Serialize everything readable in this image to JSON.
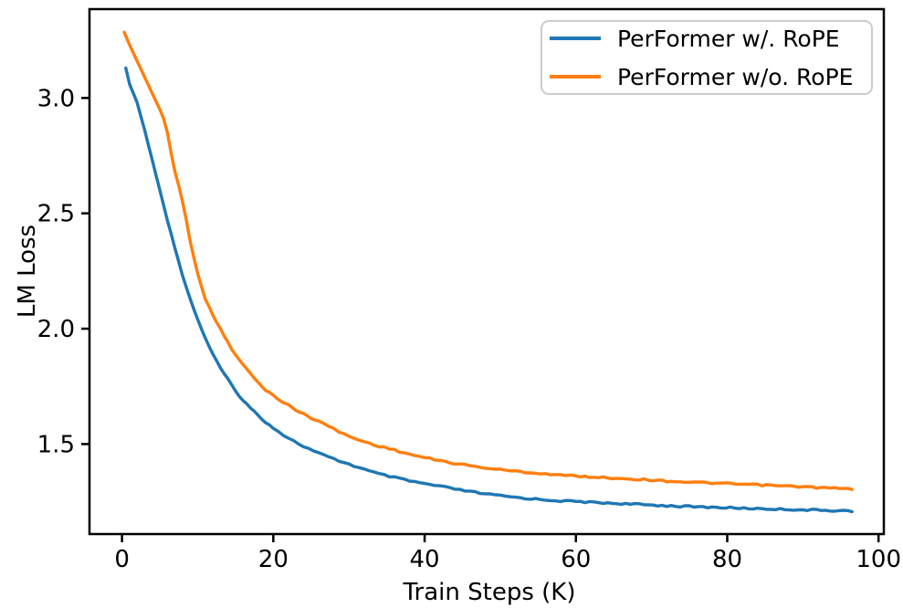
{
  "chart_data": {
    "type": "line",
    "title": "",
    "xlabel": "Train Steps (K)",
    "ylabel": "LM Loss",
    "xlim": [
      -4.3,
      100.7
    ],
    "ylim": [
      1.11,
      3.385
    ],
    "grid": false,
    "background_color": "#ffffff",
    "axis_color": "#000000",
    "x_ticks": {
      "values": [
        0,
        20,
        40,
        60,
        80,
        100
      ],
      "labels": [
        "0",
        "20",
        "40",
        "60",
        "80",
        "100"
      ]
    },
    "y_ticks": {
      "values": [
        1.5,
        2.0,
        2.5,
        3.0
      ],
      "labels": [
        "1.5",
        "2.0",
        "2.5",
        "3.0"
      ]
    },
    "legend": {
      "position": "upper right",
      "border_color": "#cccccc",
      "entries": [
        "PerFormer w/. RoPE",
        "PerFormer w/o. RoPE"
      ]
    },
    "series": [
      {
        "name": "PerFormer w/. RoPE",
        "color": "#1f77b4",
        "x": [
          0.5,
          1,
          2,
          3,
          4,
          5,
          6,
          7,
          8,
          9,
          10,
          11,
          12,
          13,
          14,
          15,
          16,
          17,
          18,
          19,
          20,
          22,
          24,
          26,
          28,
          30,
          32,
          34,
          36,
          38,
          40,
          42,
          44,
          46,
          48,
          50,
          52,
          54,
          56,
          58,
          60,
          63,
          66,
          69,
          72,
          75,
          78,
          81,
          84,
          87,
          90,
          93,
          96.5
        ],
        "y": [
          3.13,
          3.06,
          2.98,
          2.86,
          2.73,
          2.6,
          2.47,
          2.35,
          2.23,
          2.13,
          2.04,
          1.96,
          1.89,
          1.83,
          1.78,
          1.73,
          1.69,
          1.655,
          1.625,
          1.595,
          1.57,
          1.525,
          1.49,
          1.46,
          1.435,
          1.413,
          1.39,
          1.37,
          1.355,
          1.34,
          1.328,
          1.317,
          1.305,
          1.294,
          1.284,
          1.276,
          1.269,
          1.263,
          1.258,
          1.254,
          1.251,
          1.246,
          1.242,
          1.237,
          1.233,
          1.229,
          1.226,
          1.223,
          1.22,
          1.218,
          1.215,
          1.213,
          1.21
        ]
      },
      {
        "name": "PerFormer w/o. RoPE",
        "color": "#ff7f0e",
        "x": [
          0.3,
          1,
          2,
          3,
          4,
          5,
          5.5,
          6,
          6.5,
          7,
          7.5,
          8,
          8.5,
          9,
          10,
          11,
          12,
          13,
          14,
          15,
          16,
          17,
          18,
          19,
          20,
          21,
          22,
          23,
          24,
          25,
          26,
          28,
          30,
          32,
          34,
          36,
          38,
          40,
          42,
          44,
          46,
          48,
          50,
          52,
          54,
          56,
          58,
          60,
          63,
          66,
          69,
          72,
          75,
          78,
          81,
          84,
          87,
          90,
          93,
          96.5
        ],
        "y": [
          3.285,
          3.23,
          3.16,
          3.09,
          3.02,
          2.95,
          2.91,
          2.85,
          2.76,
          2.68,
          2.62,
          2.55,
          2.47,
          2.38,
          2.24,
          2.13,
          2.06,
          2.0,
          1.94,
          1.885,
          1.845,
          1.805,
          1.765,
          1.735,
          1.71,
          1.688,
          1.668,
          1.648,
          1.63,
          1.614,
          1.6,
          1.565,
          1.533,
          1.51,
          1.491,
          1.474,
          1.456,
          1.441,
          1.428,
          1.416,
          1.406,
          1.397,
          1.389,
          1.382,
          1.376,
          1.371,
          1.366,
          1.361,
          1.356,
          1.351,
          1.346,
          1.34,
          1.335,
          1.331,
          1.327,
          1.323,
          1.319,
          1.315,
          1.31,
          1.305
        ]
      }
    ]
  }
}
